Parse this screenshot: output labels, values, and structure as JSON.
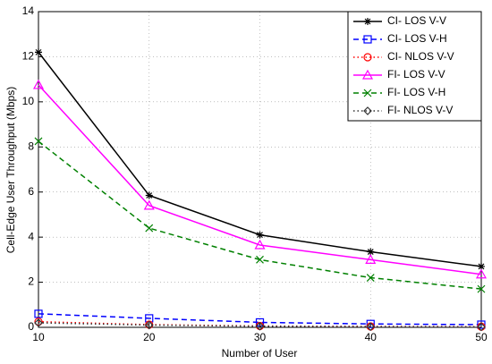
{
  "chart_data": {
    "type": "line",
    "xlabel": "Number of User",
    "ylabel": "Cell-Edge User Throughput (Mbps)",
    "x": [
      10,
      20,
      30,
      40,
      50
    ],
    "xlim": [
      10,
      50
    ],
    "xticks": [
      10,
      20,
      30,
      40,
      50
    ],
    "ylim": [
      0,
      14
    ],
    "yticks": [
      0,
      2,
      4,
      6,
      8,
      10,
      12,
      14
    ],
    "grid": true,
    "legend": "top-right",
    "series": [
      {
        "name": "CI- LOS V-V",
        "color": "#000000",
        "style": "solid",
        "marker": "star",
        "values": [
          12.2,
          5.85,
          4.1,
          3.35,
          2.7
        ]
      },
      {
        "name": "CI- LOS V-H",
        "color": "#0000ff",
        "style": "dashed",
        "marker": "square",
        "values": [
          0.6,
          0.4,
          0.22,
          0.15,
          0.12
        ]
      },
      {
        "name": "CI- NLOS V-V",
        "color": "#ff0000",
        "style": "dotted",
        "marker": "circle",
        "values": [
          0.25,
          0.12,
          0.06,
          0.04,
          0.03
        ]
      },
      {
        "name": "FI- LOS V-V",
        "color": "#ff00ff",
        "style": "solid",
        "marker": "triangle",
        "values": [
          10.75,
          5.4,
          3.65,
          3.0,
          2.35
        ]
      },
      {
        "name": "FI- LOS V-H",
        "color": "#008000",
        "style": "dashed",
        "marker": "x",
        "values": [
          8.25,
          4.4,
          3.0,
          2.2,
          1.7
        ]
      },
      {
        "name": "FI- NLOS V-V",
        "color": "#333333",
        "style": "dotted",
        "marker": "diamond",
        "values": [
          0.2,
          0.1,
          0.05,
          0.03,
          0.02
        ]
      }
    ]
  }
}
